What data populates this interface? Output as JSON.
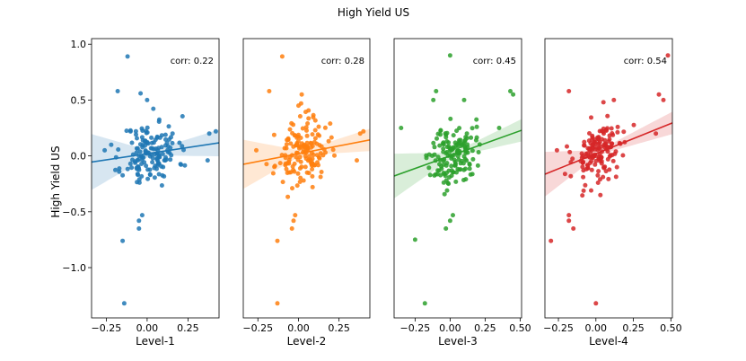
{
  "figure_title": "High Yield US",
  "chart_data": [
    {
      "type": "scatter",
      "xlabel": "Level-1",
      "ylabel": "High Yield US",
      "color": "#1f77b4",
      "xlim": [
        -0.34,
        0.44
      ],
      "ylim": [
        -1.45,
        1.05
      ],
      "xticks": [
        -0.25,
        0.0,
        0.25
      ],
      "xtick_labels": [
        "−0.25",
        "0.00",
        "0.25"
      ],
      "yticks": [
        1.0,
        0.5,
        0.0,
        -0.5,
        -1.0
      ],
      "ytick_labels": [
        "1.0",
        "0.5",
        "0.0",
        "−0.5",
        "−1.0"
      ],
      "corr_label": "corr: 0.22",
      "slope": 0.22,
      "intercept": 0.02,
      "band": [
        0.25,
        0.02,
        0.12
      ],
      "seed": 11,
      "points": [
        [
          -0.12,
          0.89
        ],
        [
          -0.18,
          0.58
        ],
        [
          -0.15,
          -0.76
        ],
        [
          -0.14,
          -1.32
        ],
        [
          -0.05,
          -0.58
        ],
        [
          -0.03,
          -0.53
        ],
        [
          -0.05,
          -0.65
        ],
        [
          0.38,
          0.2
        ],
        [
          0.42,
          0.22
        ],
        [
          0.37,
          -0.04
        ],
        [
          -0.26,
          0.05
        ],
        [
          0.0,
          0.5
        ],
        [
          -0.04,
          0.56
        ]
      ],
      "cluster_n": 150,
      "cluster_sx": 0.085,
      "cluster_sy": 0.17
    },
    {
      "type": "scatter",
      "xlabel": "Level-2",
      "ylabel": "",
      "color": "#ff7f0e",
      "xlim": [
        -0.34,
        0.44
      ],
      "ylim": [
        -1.45,
        1.05
      ],
      "xticks": [
        -0.25,
        0.0,
        0.25
      ],
      "xtick_labels": [
        "−0.25",
        "0.00",
        "0.25"
      ],
      "yticks": [],
      "ytick_labels": [],
      "corr_label": "corr: 0.28",
      "slope": 0.28,
      "intercept": 0.02,
      "band": [
        0.22,
        0.02,
        0.1
      ],
      "seed": 23,
      "points": [
        [
          -0.1,
          0.89
        ],
        [
          -0.18,
          0.58
        ],
        [
          -0.13,
          -0.76
        ],
        [
          -0.13,
          -1.32
        ],
        [
          -0.03,
          -0.58
        ],
        [
          -0.02,
          -0.53
        ],
        [
          -0.04,
          -0.65
        ],
        [
          0.38,
          0.2
        ],
        [
          0.4,
          0.22
        ],
        [
          0.36,
          -0.04
        ],
        [
          -0.26,
          0.05
        ],
        [
          0.02,
          0.55
        ],
        [
          0.0,
          0.45
        ]
      ],
      "cluster_n": 150,
      "cluster_sx": 0.08,
      "cluster_sy": 0.17
    },
    {
      "type": "scatter",
      "xlabel": "Level-3",
      "ylabel": "",
      "color": "#2ca02c",
      "xlim": [
        -0.4,
        0.51
      ],
      "ylim": [
        -1.45,
        1.05
      ],
      "xticks": [
        -0.25,
        0.0,
        0.25,
        0.5
      ],
      "xtick_labels": [
        "−0.25",
        "0.00",
        "0.25",
        "0.50"
      ],
      "yticks": [],
      "ytick_labels": [],
      "corr_label": "corr: 0.45",
      "slope": 0.45,
      "intercept": 0.0,
      "band": [
        0.2,
        0.02,
        0.1
      ],
      "seed": 37,
      "points": [
        [
          0.0,
          0.9
        ],
        [
          -0.1,
          0.58
        ],
        [
          -0.25,
          -0.75
        ],
        [
          -0.18,
          -1.32
        ],
        [
          0.0,
          -0.58
        ],
        [
          0.02,
          -0.53
        ],
        [
          -0.03,
          -0.65
        ],
        [
          0.45,
          0.55
        ],
        [
          0.43,
          0.58
        ],
        [
          0.35,
          0.25
        ],
        [
          -0.35,
          0.25
        ],
        [
          0.1,
          0.5
        ],
        [
          -0.12,
          0.5
        ]
      ],
      "cluster_n": 150,
      "cluster_sx": 0.08,
      "cluster_sy": 0.16
    },
    {
      "type": "scatter",
      "xlabel": "Level-4",
      "ylabel": "",
      "color": "#d62728",
      "xlim": [
        -0.34,
        0.51
      ],
      "ylim": [
        -1.45,
        1.05
      ],
      "xticks": [
        -0.25,
        0.0,
        0.25,
        0.5
      ],
      "xtick_labels": [
        "−0.25",
        "0.00",
        "0.25",
        "0.50"
      ],
      "yticks": [],
      "ytick_labels": [],
      "corr_label": "corr: 0.54",
      "slope": 0.54,
      "intercept": 0.02,
      "band": [
        0.2,
        0.02,
        0.1
      ],
      "seed": 53,
      "points": [
        [
          0.48,
          0.9
        ],
        [
          -0.18,
          0.58
        ],
        [
          -0.3,
          -0.76
        ],
        [
          0.0,
          -1.32
        ],
        [
          -0.18,
          -0.58
        ],
        [
          -0.18,
          -0.53
        ],
        [
          -0.15,
          -0.65
        ],
        [
          0.42,
          0.55
        ],
        [
          0.45,
          0.5
        ],
        [
          0.4,
          0.2
        ],
        [
          -0.26,
          0.05
        ],
        [
          0.05,
          0.48
        ],
        [
          0.12,
          0.5
        ]
      ],
      "cluster_n": 150,
      "cluster_sx": 0.085,
      "cluster_sy": 0.16
    }
  ]
}
